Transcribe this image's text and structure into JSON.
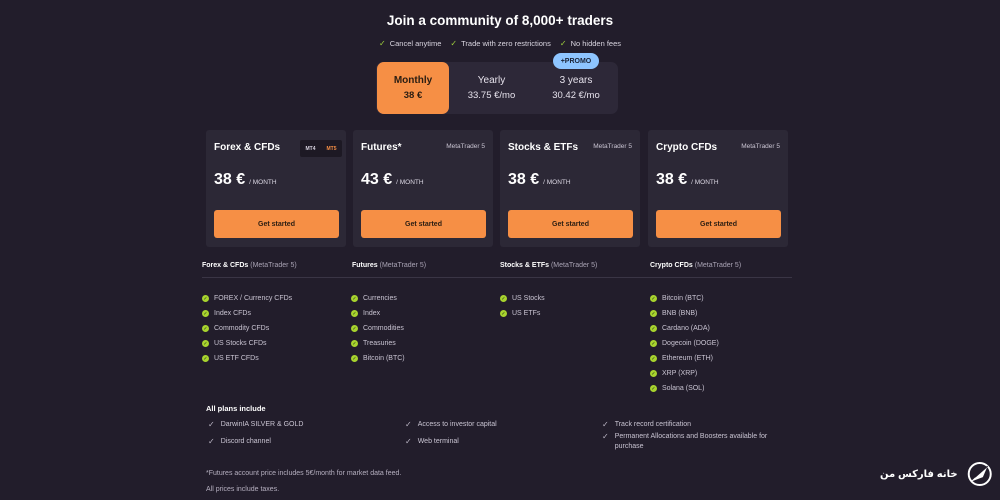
{
  "header": {
    "headline": "Join a community of 8,000+ traders",
    "benefits": [
      "Cancel anytime",
      "Trade with zero restrictions",
      "No hidden fees"
    ]
  },
  "periods": [
    {
      "name": "Monthly",
      "price": "38 €"
    },
    {
      "name": "Yearly",
      "price": "33.75 €/mo"
    },
    {
      "name": "3 years",
      "price": "30.42 €/mo"
    }
  ],
  "promo_badge": "+PROMO",
  "cards": [
    {
      "title": "Forex & CFDs",
      "platform": "",
      "mt4": "MT4",
      "mt5": "MT5",
      "amount": "38 €",
      "per": "/ MONTH",
      "cta": "Get started"
    },
    {
      "title": "Futures*",
      "platform": "MetaTrader 5",
      "amount": "43 €",
      "per": "/ MONTH",
      "cta": "Get started"
    },
    {
      "title": "Stocks & ETFs",
      "platform": "MetaTrader 5",
      "amount": "38 €",
      "per": "/ MONTH",
      "cta": "Get started"
    },
    {
      "title": "Crypto CFDs",
      "platform": "MetaTrader 5",
      "amount": "38 €",
      "per": "/ MONTH",
      "cta": "Get started"
    }
  ],
  "columns": [
    {
      "name": "Forex & CFDs",
      "sub": "(MetaTrader 5)",
      "items": [
        "FOREX / Currency CFDs",
        "Index CFDs",
        "Commodity CFDs",
        "US Stocks CFDs",
        "US ETF CFDs"
      ]
    },
    {
      "name": "Futures",
      "sub": "(MetaTrader 5)",
      "items": [
        "Currencies",
        "Index",
        "Commodities",
        "Treasuries",
        "Bitcoin (BTC)"
      ]
    },
    {
      "name": "Stocks & ETFs",
      "sub": "(MetaTrader 5)",
      "items": [
        "US Stocks",
        "US ETFs"
      ]
    },
    {
      "name": "Crypto CFDs",
      "sub": "(MetaTrader 5)",
      "items": [
        "Bitcoin (BTC)",
        "BNB (BNB)",
        "Cardano (ADA)",
        "Dogecoin (DOGE)",
        "Ethereum (ETH)",
        "XRP (XRP)",
        "Solana (SOL)"
      ]
    }
  ],
  "all_plans": {
    "heading": "All plans include",
    "items": [
      "DarwinIA SILVER & GOLD",
      "Discord channel",
      "Access to investor capital",
      "Web terminal",
      "Track record certification",
      "Permanent Allocations and Boosters available for purchase"
    ]
  },
  "footnotes": [
    "*Futures account price includes 5€/month for market data feed.",
    "All prices include taxes."
  ],
  "watermark": {
    "text": "خانه فارکس من"
  },
  "colors": {
    "background": "#221d2b",
    "accent": "#f68f45",
    "card": "#2c2836",
    "check": "#a8d42e",
    "promo": "#8ec5ff"
  }
}
